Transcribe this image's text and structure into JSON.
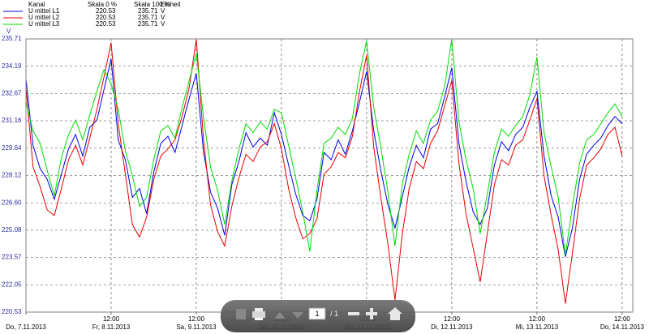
{
  "chart_data": {
    "type": "line",
    "y_unit": "V",
    "legend_headers": [
      "Kanal",
      "Skala 0 %",
      "Skala 100 %",
      "Einheit"
    ],
    "ylim": [
      220.53,
      235.71
    ],
    "yticks": [
      220.53,
      222.05,
      223.57,
      225.08,
      {
        "value": 226.6,
        "label": "226.60"
      },
      228.12,
      229.64,
      231.16,
      232.67,
      234.19,
      235.71
    ],
    "xlim": [
      "2013-11-07T12:00",
      "2013-11-14T15:00"
    ],
    "xticks": [
      {
        "value": "2013-11-07T12:00",
        "label": "Do, 7.11.2013"
      },
      {
        "value": "2013-11-08T12:00",
        "label": "Fr, 8.11.2013"
      },
      {
        "value": "2013-11-09T12:00",
        "label": "Sa, 9.11.2013"
      },
      {
        "value": "2013-11-10T12:00",
        "label": "So, 10.11.2013"
      },
      {
        "value": "2013-11-11T12:00",
        "label": "Mo, 11.11.2013"
      },
      {
        "value": "2013-11-12T12:00",
        "label": "Di, 12.11.2013"
      },
      {
        "value": "2013-11-13T12:00",
        "label": "Mi, 13.11.2013"
      },
      {
        "value": "2013-11-14T12:00",
        "label": "Do, 14.11.2013"
      }
    ],
    "xtick_times": [
      null,
      "12:00",
      "12:00",
      "12:00",
      "12:00",
      "12:00",
      "12:00",
      "12:00"
    ],
    "grid": true,
    "x": [
      "2013-11-07T12:00",
      "2013-11-07T14:00",
      "2013-11-07T16:00",
      "2013-11-07T18:00",
      "2013-11-07T20:00",
      "2013-11-07T22:00",
      "2013-11-08T00:00",
      "2013-11-08T02:00",
      "2013-11-08T04:00",
      "2013-11-08T06:00",
      "2013-11-08T08:00",
      "2013-11-08T10:00",
      "2013-11-08T12:00",
      "2013-11-08T14:00",
      "2013-11-08T16:00",
      "2013-11-08T18:00",
      "2013-11-08T20:00",
      "2013-11-08T22:00",
      "2013-11-09T00:00",
      "2013-11-09T02:00",
      "2013-11-09T04:00",
      "2013-11-09T06:00",
      "2013-11-09T08:00",
      "2013-11-09T10:00",
      "2013-11-09T12:00",
      "2013-11-09T14:00",
      "2013-11-09T16:00",
      "2013-11-09T18:00",
      "2013-11-09T20:00",
      "2013-11-09T22:00",
      "2013-11-10T00:00",
      "2013-11-10T02:00",
      "2013-11-10T04:00",
      "2013-11-10T06:00",
      "2013-11-10T08:00",
      "2013-11-10T10:00",
      "2013-11-10T12:00",
      "2013-11-10T14:00",
      "2013-11-10T16:00",
      "2013-11-10T18:00",
      "2013-11-10T20:00",
      "2013-11-10T22:00",
      "2013-11-11T00:00",
      "2013-11-11T02:00",
      "2013-11-11T04:00",
      "2013-11-11T06:00",
      "2013-11-11T08:00",
      "2013-11-11T10:00",
      "2013-11-11T12:00",
      "2013-11-11T14:00",
      "2013-11-11T16:00",
      "2013-11-11T18:00",
      "2013-11-11T20:00",
      "2013-11-11T22:00",
      "2013-11-12T00:00",
      "2013-11-12T02:00",
      "2013-11-12T04:00",
      "2013-11-12T06:00",
      "2013-11-12T08:00",
      "2013-11-12T10:00",
      "2013-11-12T12:00",
      "2013-11-12T14:00",
      "2013-11-12T16:00",
      "2013-11-12T18:00",
      "2013-11-12T20:00",
      "2013-11-12T22:00",
      "2013-11-13T00:00",
      "2013-11-13T02:00",
      "2013-11-13T04:00",
      "2013-11-13T06:00",
      "2013-11-13T08:00",
      "2013-11-13T10:00",
      "2013-11-13T12:00",
      "2013-11-13T14:00",
      "2013-11-13T16:00",
      "2013-11-13T18:00",
      "2013-11-13T20:00",
      "2013-11-13T22:00",
      "2013-11-14T00:00",
      "2013-11-14T02:00",
      "2013-11-14T04:00",
      "2013-11-14T06:00",
      "2013-11-14T08:00",
      "2013-11-14T10:00",
      "2013-11-14T12:00"
    ],
    "series": [
      {
        "name": "U mittel L1",
        "color": "#0000e6",
        "scale_0": 220.53,
        "scale_100": 235.71,
        "unit": "V",
        "values": [
          233.5,
          229.8,
          228.5,
          227.9,
          226.8,
          228.2,
          229.6,
          230.4,
          229.2,
          230.8,
          231.2,
          232.9,
          234.6,
          230.1,
          229.0,
          226.9,
          227.4,
          226.0,
          228.3,
          229.9,
          230.3,
          229.4,
          230.9,
          232.4,
          233.8,
          229.5,
          227.2,
          226.3,
          224.8,
          227.6,
          228.9,
          230.5,
          229.7,
          230.2,
          229.8,
          231.6,
          230.4,
          228.7,
          227.1,
          225.9,
          225.6,
          226.8,
          229.4,
          229.0,
          230.1,
          229.3,
          230.6,
          232.2,
          233.9,
          230.6,
          228.4,
          226.5,
          225.2,
          226.9,
          228.6,
          229.8,
          229.1,
          230.7,
          231.0,
          232.5,
          234.1,
          229.9,
          227.8,
          226.1,
          225.4,
          226.3,
          228.7,
          230.0,
          229.5,
          230.4,
          230.8,
          231.9,
          232.8,
          229.2,
          227.0,
          225.8,
          223.6,
          225.2,
          227.9,
          229.3,
          229.8,
          230.2,
          230.9,
          231.4,
          231.0
        ]
      },
      {
        "name": "U mittel L2",
        "color": "#e60000",
        "scale_0": 220.53,
        "scale_100": 235.71,
        "unit": "V",
        "values": [
          233.0,
          228.6,
          227.5,
          226.2,
          225.9,
          227.4,
          229.0,
          229.8,
          228.7,
          230.2,
          231.8,
          233.6,
          235.5,
          231.0,
          228.2,
          225.4,
          224.7,
          225.8,
          227.9,
          229.2,
          229.6,
          230.1,
          231.4,
          233.0,
          235.7,
          230.2,
          226.5,
          225.0,
          224.2,
          226.4,
          228.0,
          229.3,
          228.9,
          229.7,
          230.0,
          231.0,
          229.6,
          227.4,
          225.8,
          224.6,
          224.9,
          225.7,
          228.2,
          228.6,
          229.4,
          229.1,
          230.3,
          232.8,
          234.8,
          229.7,
          226.9,
          224.3,
          221.2,
          224.8,
          227.4,
          228.9,
          228.5,
          229.9,
          230.6,
          232.0,
          233.4,
          228.8,
          226.0,
          224.1,
          222.2,
          224.9,
          227.6,
          229.0,
          228.7,
          229.8,
          230.1,
          231.2,
          232.4,
          228.1,
          225.9,
          224.0,
          221.0,
          223.8,
          226.8,
          228.7,
          229.1,
          229.6,
          230.4,
          230.8,
          229.2
        ]
      },
      {
        "name": "U mittel L3",
        "color": "#00dd00",
        "scale_0": 220.53,
        "scale_100": 235.71,
        "unit": "V",
        "values": [
          232.2,
          230.6,
          229.9,
          228.4,
          227.0,
          229.1,
          230.4,
          231.2,
          230.1,
          231.5,
          232.8,
          234.0,
          233.2,
          231.8,
          229.5,
          228.1,
          226.4,
          226.9,
          229.0,
          230.6,
          230.9,
          230.2,
          231.9,
          233.4,
          234.9,
          231.4,
          228.6,
          227.3,
          225.4,
          227.8,
          229.6,
          231.0,
          230.5,
          231.1,
          230.7,
          231.8,
          231.6,
          229.8,
          228.0,
          226.1,
          223.9,
          227.3,
          229.9,
          230.2,
          230.8,
          230.4,
          231.3,
          233.8,
          235.6,
          231.9,
          229.7,
          227.2,
          224.2,
          227.6,
          229.3,
          230.6,
          229.9,
          231.2,
          231.7,
          233.1,
          235.7,
          231.1,
          229.0,
          227.4,
          224.9,
          227.1,
          229.4,
          230.7,
          230.3,
          230.9,
          231.4,
          232.6,
          234.7,
          230.5,
          228.6,
          226.9,
          223.7,
          226.4,
          228.8,
          230.1,
          230.4,
          231.0,
          231.6,
          232.1,
          231.4
        ]
      }
    ]
  },
  "toolbar": {
    "page": "1",
    "pages": "/ 1"
  }
}
